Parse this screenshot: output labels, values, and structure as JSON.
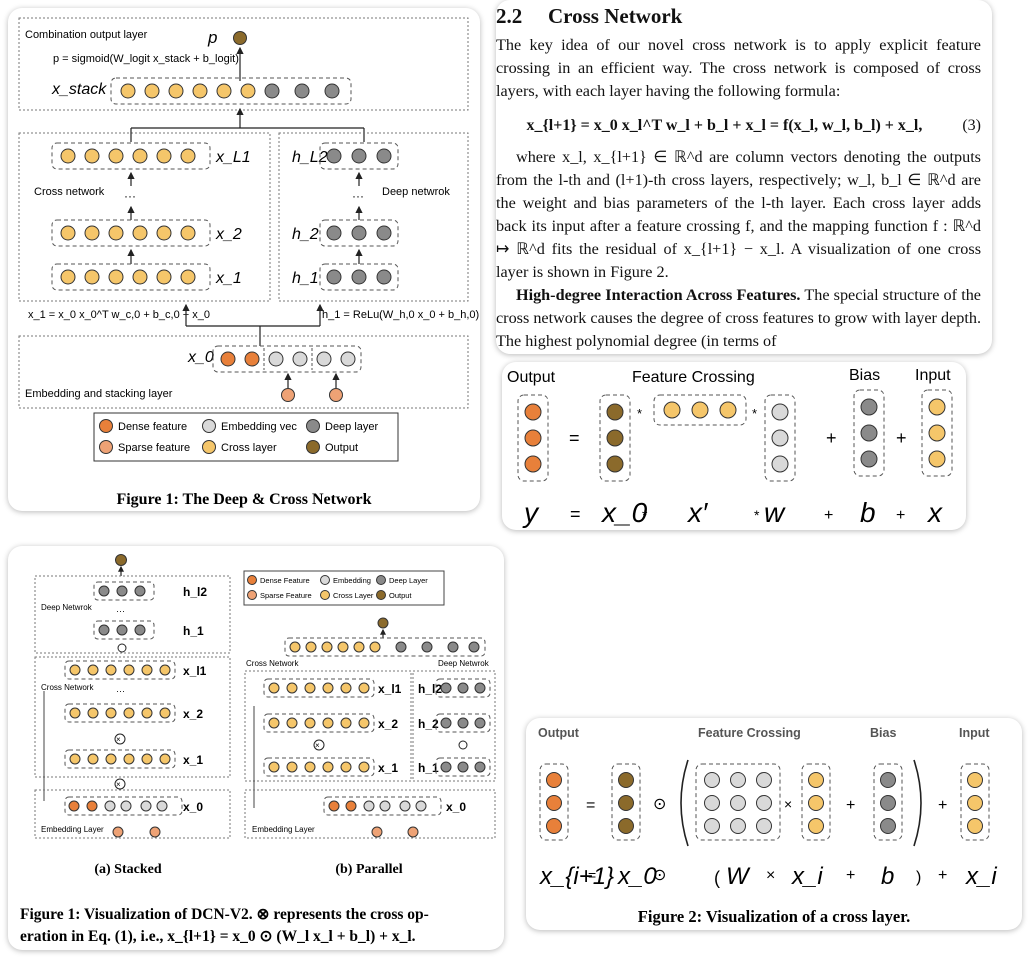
{
  "colors": {
    "dense": "#e8803a",
    "sparse": "#eea275",
    "embedding": "#d9d9d9",
    "cross": "#f5c66a",
    "deep": "#8a8a8a",
    "output": "#8b6a2b"
  },
  "fig1": {
    "combination_title": "Combination output layer",
    "p_label": "p",
    "p_formula": "p = sigmoid(W_logit x_stack + b_logit)",
    "x_stack": "x_stack",
    "x_L1": "x_L1",
    "h_L2": "h_L2",
    "cross_network": "Cross network",
    "deep_network": "Deep netwrok",
    "x2": "x_2",
    "x1": "x_1",
    "h2": "h_2",
    "h1": "h_1",
    "cross_formula": "x_1 = x_0 x_0^T w_c,0 + b_c,0 + x_0",
    "deep_formula": "h_1 = ReLu(W_h,0 x_0 + b_h,0)",
    "x0": "x_0",
    "embed_title": "Embedding and stacking layer",
    "legend": {
      "dense": "Dense feature",
      "embedding": "Embedding vec",
      "deep": "Deep layer",
      "sparse": "Sparse feature",
      "cross": "Cross layer",
      "output": "Output"
    },
    "caption": "Figure 1: The Deep & Cross Network"
  },
  "text": {
    "section_num": "2.2",
    "section_title": "Cross Network",
    "para1": "The key idea of our novel cross network is to apply explicit feature crossing in an efficient way. The cross network is composed of cross layers, with each layer having the following formula:",
    "equation": "x_{l+1} = x_0 x_l^T w_l + b_l + x_l = f(x_l, w_l, b_l) + x_l,",
    "eq_num": "(3)",
    "para2": "where x_l, x_{l+1} ∈ ℝ^d are column vectors denoting the outputs from the l-th and (l+1)-th cross layers, respectively; w_l, b_l ∈ ℝ^d are the weight and bias parameters of the l-th layer. Each cross layer adds back its input after a feature crossing f, and the mapping function f : ℝ^d ↦ ℝ^d fits the residual of x_{l+1} − x_l. A visualization of one cross layer is shown in Figure 2.",
    "para3_bold": "High-degree Interaction Across Features.",
    "para3": "The special structure of the cross network causes the degree of cross features to grow with layer depth. The highest polynomial degree (in terms of"
  },
  "fig_cross1": {
    "output": "Output",
    "feature_crossing": "Feature Crossing",
    "bias": "Bias",
    "input": "Input",
    "eq_y": "y",
    "eq_eq": "=",
    "eq_x0": "x_0",
    "eq_xp": "x′",
    "eq_w": "w",
    "eq_b": "b",
    "eq_x": "x",
    "star": "*",
    "plus": "+"
  },
  "dcnv2": {
    "stacked": {
      "h_l2": "h_l2",
      "deep_network": "Deep Netwrok",
      "h1": "h_1",
      "x_l1": "x_l1",
      "cross_network": "Cross Network",
      "x2": "x_2",
      "x1": "x_1",
      "x0": "x_0",
      "embedding_layer": "Embedding Layer",
      "label": "(a) Stacked"
    },
    "parallel": {
      "legend": {
        "dense": "Dense Feature",
        "embedding": "Embedding",
        "deep": "Deep Layer",
        "sparse": "Sparse Feature",
        "cross": "Cross Layer",
        "output": "Output"
      },
      "cross_network": "Cross Network",
      "deep_network": "Deep Netwrok",
      "x_l1": "x_l1",
      "h_l2": "h_l2",
      "x2": "x_2",
      "h2": "h_2",
      "x1": "x_1",
      "h1": "h_1",
      "x0": "x_0",
      "embedding_layer": "Embedding Layer",
      "label": "(b) Parallel"
    },
    "caption_line1": "Figure 1: Visualization of DCN-V2. ⊗ represents the cross op-",
    "caption_line2": "eration in Eq. (1), i.e., x_{l+1} = x_0 ⊙ (W_l x_l + b_l) + x_l."
  },
  "fig2": {
    "output": "Output",
    "feature_crossing": "Feature Crossing",
    "bias": "Bias",
    "input": "Input",
    "eq_xi1": "x_{i+1}",
    "eq_eq": "=",
    "eq_x0": "x_0",
    "eq_odot": "⊙",
    "eq_lp": "(",
    "eq_W": "W",
    "eq_times": "×",
    "eq_xi": "x_i",
    "eq_plus": "+",
    "eq_b": "b",
    "eq_rp": ")",
    "eq_xi_end": "x_i",
    "caption": "Figure 2: Visualization of a cross layer."
  }
}
